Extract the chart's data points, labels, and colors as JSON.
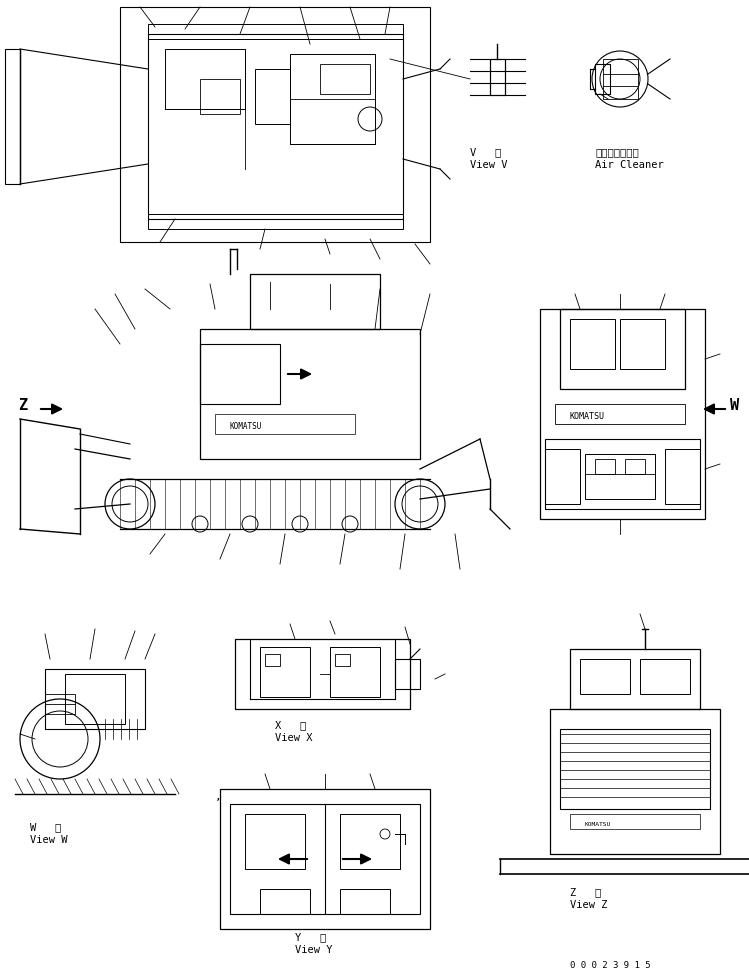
{
  "bg_color": "#ffffff",
  "line_color": "#000000",
  "fig_width": 7.49,
  "fig_height": 9.79,
  "dpi": 100,
  "labels": {
    "view_v_jp": "V   視",
    "view_v_en": "View V",
    "air_cleaner_jp": "エアークリーナ",
    "air_cleaner_en": "Air Cleaner",
    "z_arrow": "Z",
    "w_arrow": "W",
    "view_w_jp": "W   視",
    "view_w_en": "View W",
    "view_x_jp": "X   視",
    "view_x_en": "View X",
    "view_y_jp": "Y   視",
    "view_y_en": "View Y",
    "view_z_jp": "Z   視",
    "view_z_en": "View Z",
    "part_number": "0 0 0 2 3 9 1 5"
  },
  "font_size_label": 7.5,
  "font_size_small": 6.5,
  "font_size_arrow": 11,
  "font_family": "monospace"
}
